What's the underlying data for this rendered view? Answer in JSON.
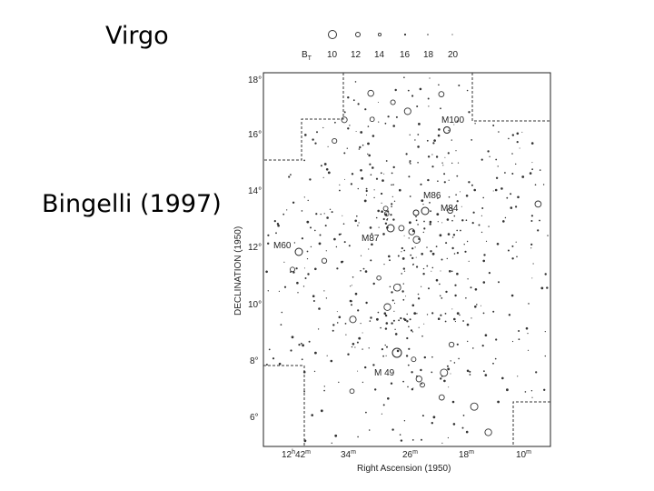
{
  "slide": {
    "title": "Virgo",
    "subtitle": "Bingelli (1997)"
  },
  "figure": {
    "legend": {
      "label": "B",
      "label_sub": "T",
      "magnitudes": [
        "10",
        "12",
        "14",
        "16",
        "18",
        "20"
      ]
    },
    "dec_axis_label": "DECLINATION (1950)",
    "ra_axis_label": "Right Ascension (1950)",
    "dec_ticks": [
      "18°",
      "16°",
      "14°",
      "12°",
      "10°",
      "8°",
      "6°"
    ],
    "ra_ticks": [
      {
        "main": "12",
        "sup1": "h",
        "mid": "42",
        "sup2": "m"
      },
      {
        "main": "34",
        "sup1": "m",
        "mid": "",
        "sup2": ""
      },
      {
        "main": "26",
        "sup1": "m",
        "mid": "",
        "sup2": ""
      },
      {
        "main": "18",
        "sup1": "m",
        "mid": "",
        "sup2": ""
      },
      {
        "main": "10",
        "sup1": "m",
        "mid": "",
        "sup2": ""
      }
    ],
    "labels": [
      "M100",
      "M86",
      "M84",
      "M87",
      "M60",
      "M 49"
    ],
    "colors": {
      "ink": "#222222",
      "points": "#333333"
    }
  }
}
